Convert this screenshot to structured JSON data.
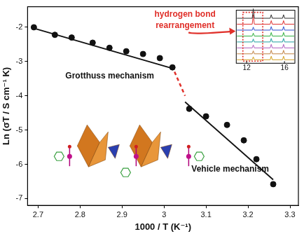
{
  "chart_data": {
    "type": "scatter",
    "x_label": "1000 / T (K⁻¹)",
    "y_label": "Ln (σT / S cm⁻¹ K)",
    "xlim": [
      2.675,
      3.32
    ],
    "xticks": [
      2.7,
      2.8,
      2.9,
      3.0,
      3.1,
      3.2,
      3.3
    ],
    "ylim": [
      -7.2,
      -1.4
    ],
    "yticks": [
      -2,
      -3,
      -4,
      -5,
      -6,
      -7
    ],
    "grid": false,
    "series": [
      {
        "type": "scatter",
        "color": "#111111",
        "marker": "circle",
        "x": [
          2.69,
          2.74,
          2.78,
          2.83,
          2.87,
          2.91,
          2.95,
          2.99,
          3.02
        ],
        "values": [
          -2.0,
          -2.22,
          -2.3,
          -2.45,
          -2.6,
          -2.7,
          -2.78,
          -2.9,
          -3.17
        ]
      },
      {
        "type": "scatter",
        "color": "#111111",
        "marker": "circle",
        "x": [
          3.06,
          3.1,
          3.15,
          3.19,
          3.22,
          3.26
        ],
        "values": [
          -4.38,
          -4.6,
          -4.85,
          -5.3,
          -5.85,
          -6.58
        ]
      },
      {
        "type": "line",
        "color": "#111111",
        "line_style": "solid",
        "x": [
          2.69,
          3.02
        ],
        "values": [
          -2.03,
          -3.2
        ]
      },
      {
        "type": "line",
        "color": "#111111",
        "line_style": "solid",
        "x": [
          3.05,
          3.26
        ],
        "values": [
          -4.18,
          -6.45
        ]
      },
      {
        "type": "line",
        "color": "#e0302a",
        "line_style": "dashed",
        "x": [
          3.025,
          3.05
        ],
        "values": [
          -3.3,
          -4.0
        ]
      }
    ],
    "annotations": [
      "Grotthuss mechanism",
      "Vehicle mechanism",
      "hydrogen bond",
      "rearrangement"
    ],
    "inset": {
      "xlim": [
        10.9,
        17.1
      ],
      "xticks": [
        12,
        16
      ],
      "peaks": [
        12.7,
        14.6,
        15.9
      ],
      "colors": [
        "#d4a020",
        "#c08040",
        "#b060c0",
        "#20a0a0",
        "#30b040",
        "#3050d0",
        "#e03030",
        "#303030"
      ]
    }
  }
}
